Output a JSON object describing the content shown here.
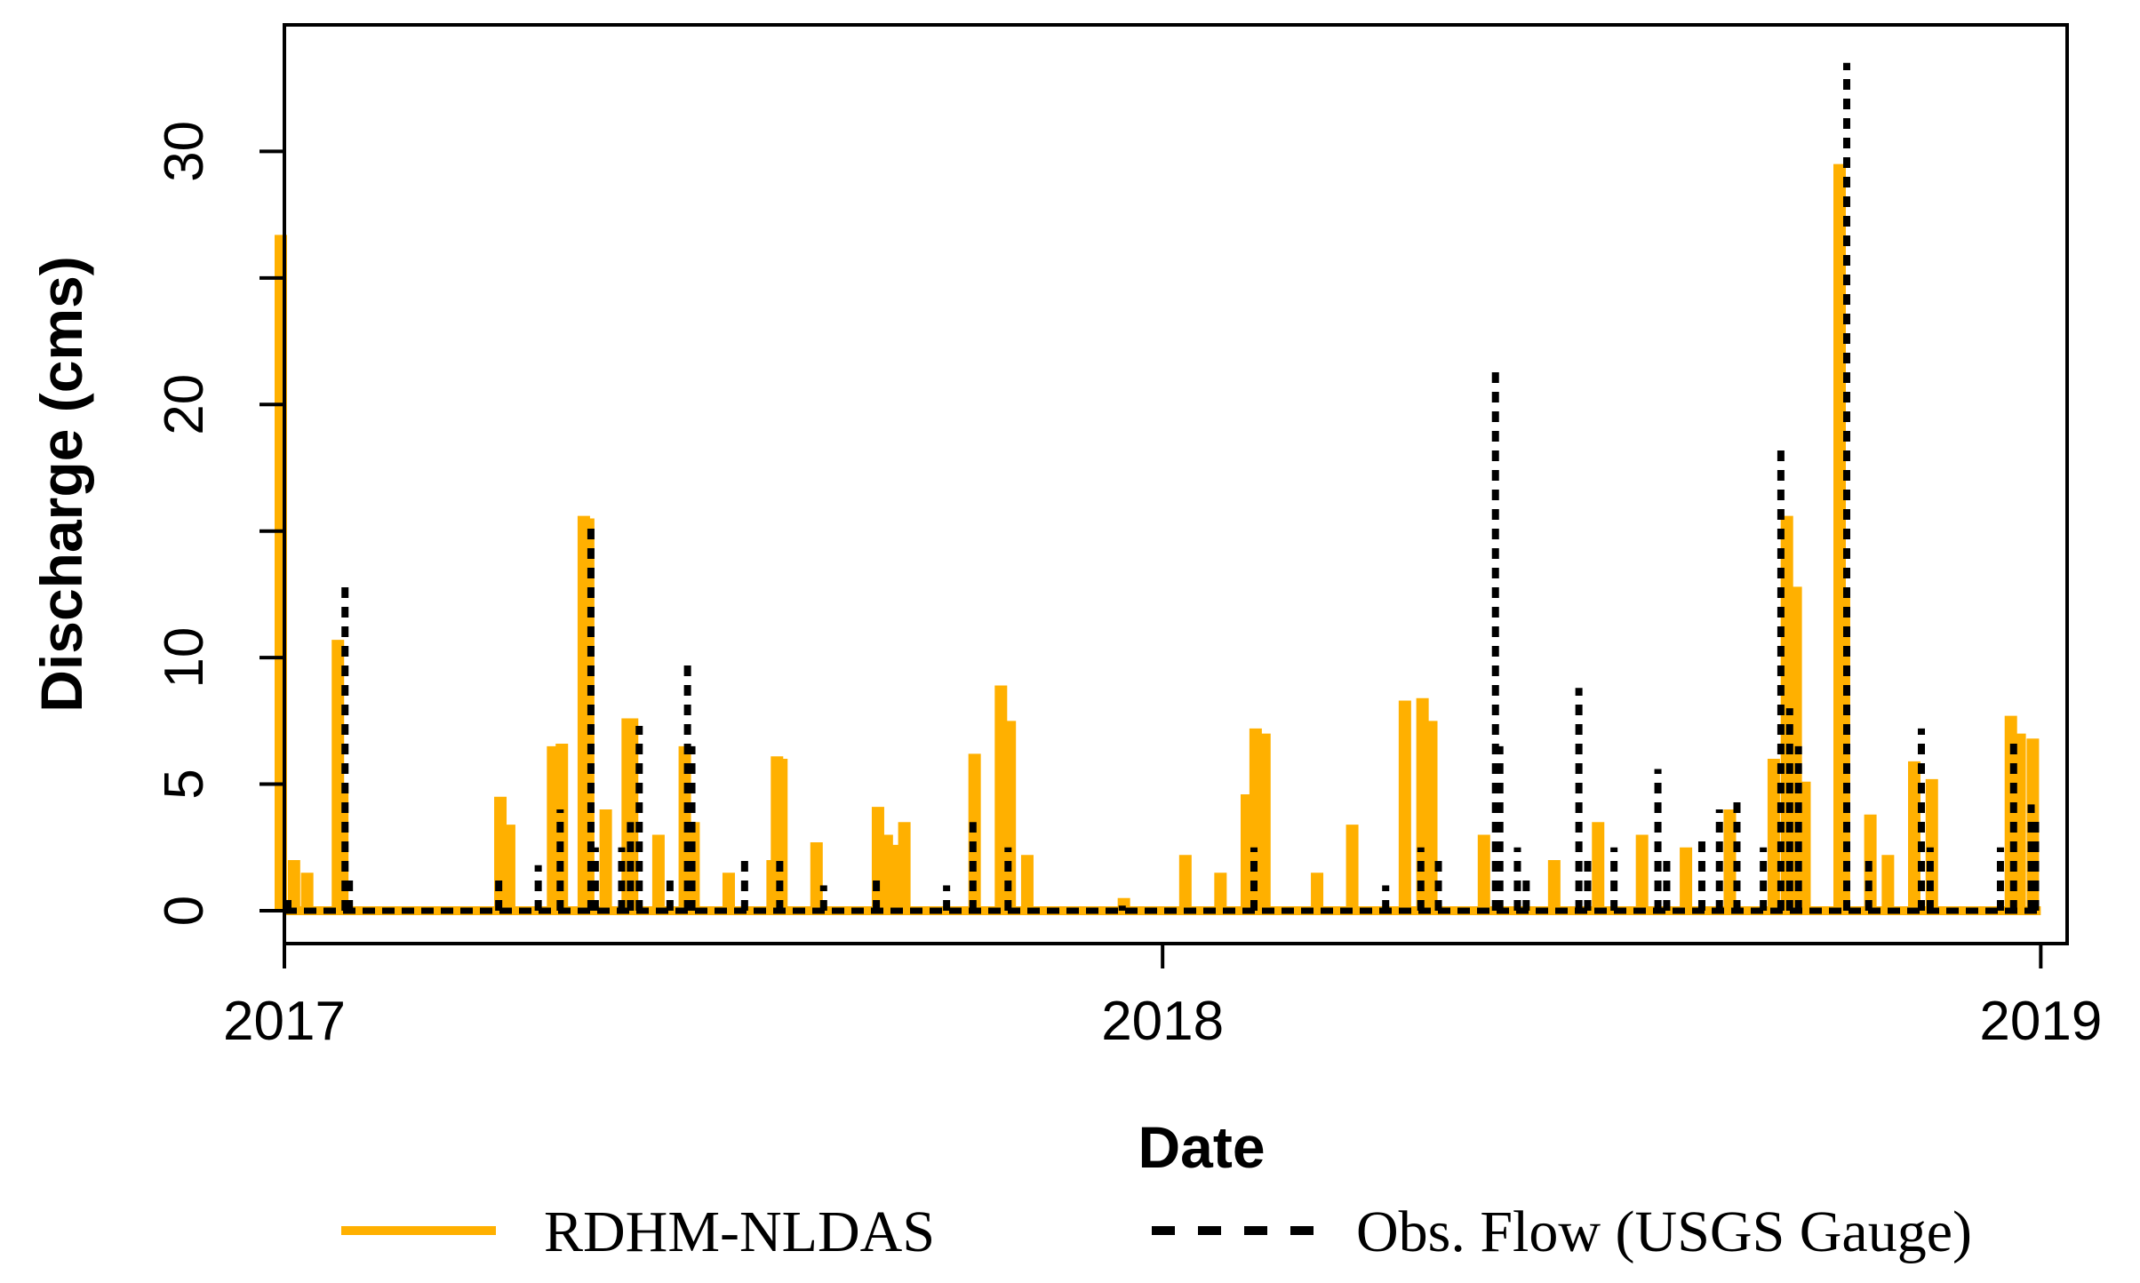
{
  "chart_data": {
    "type": "line",
    "title": "",
    "xlabel": "Date",
    "ylabel": "Discharge (cms)",
    "x_ticks": [
      "2017",
      "2018",
      "2019"
    ],
    "y_ticks": [
      0,
      5,
      10,
      20,
      30
    ],
    "xlim": [
      2017.0,
      2019.03
    ],
    "ylim": [
      -1.3,
      35.0
    ],
    "grid": false,
    "legend_position": "bottom",
    "colors": {
      "RDHM-NLDAS": "#FFB000",
      "Obs. Flow (USGS Gauge)": "#000000"
    },
    "series": [
      {
        "name": "RDHM-NLDAS",
        "style": "solid",
        "peaks": [
          [
            2017.0,
            26.7
          ],
          [
            2017.015,
            2.0
          ],
          [
            2017.03,
            1.5
          ],
          [
            2017.065,
            10.7
          ],
          [
            2017.07,
            5.0
          ],
          [
            2017.25,
            4.5
          ],
          [
            2017.26,
            3.4
          ],
          [
            2017.31,
            6.5
          ],
          [
            2017.32,
            6.6
          ],
          [
            2017.345,
            15.6
          ],
          [
            2017.35,
            15.5
          ],
          [
            2017.37,
            4.0
          ],
          [
            2017.395,
            7.6
          ],
          [
            2017.4,
            7.6
          ],
          [
            2017.43,
            3.0
          ],
          [
            2017.46,
            6.5
          ],
          [
            2017.47,
            3.5
          ],
          [
            2017.51,
            1.5
          ],
          [
            2017.56,
            2.0
          ],
          [
            2017.565,
            6.1
          ],
          [
            2017.57,
            6.0
          ],
          [
            2017.61,
            2.7
          ],
          [
            2017.68,
            4.1
          ],
          [
            2017.69,
            3.0
          ],
          [
            2017.7,
            2.6
          ],
          [
            2017.71,
            3.5
          ],
          [
            2017.79,
            6.2
          ],
          [
            2017.82,
            8.9
          ],
          [
            2017.83,
            7.5
          ],
          [
            2017.85,
            2.2
          ],
          [
            2017.96,
            0.5
          ],
          [
            2018.03,
            2.2
          ],
          [
            2018.07,
            1.5
          ],
          [
            2018.1,
            4.6
          ],
          [
            2018.11,
            7.2
          ],
          [
            2018.12,
            7.0
          ],
          [
            2018.18,
            1.5
          ],
          [
            2018.22,
            3.4
          ],
          [
            2018.28,
            8.3
          ],
          [
            2018.3,
            8.4
          ],
          [
            2018.31,
            7.5
          ],
          [
            2018.37,
            3.0
          ],
          [
            2018.45,
            2.0
          ],
          [
            2018.5,
            3.5
          ],
          [
            2018.55,
            3.0
          ],
          [
            2018.6,
            2.5
          ],
          [
            2018.65,
            4.0
          ],
          [
            2018.7,
            6.0
          ],
          [
            2018.715,
            15.6
          ],
          [
            2018.725,
            12.8
          ],
          [
            2018.735,
            5.1
          ],
          [
            2018.775,
            29.5
          ],
          [
            2018.78,
            12.6
          ],
          [
            2018.81,
            3.8
          ],
          [
            2018.83,
            2.2
          ],
          [
            2018.86,
            5.9
          ],
          [
            2018.88,
            5.2
          ],
          [
            2018.97,
            7.7
          ],
          [
            2018.98,
            7.0
          ],
          [
            2018.995,
            6.8
          ]
        ]
      },
      {
        "name": "Obs. Flow (USGS Gauge)",
        "style": "dashed",
        "peaks": [
          [
            2017.0,
            0.5
          ],
          [
            2017.065,
            12.8
          ],
          [
            2017.07,
            1.5
          ],
          [
            2017.24,
            1.5
          ],
          [
            2017.285,
            1.8
          ],
          [
            2017.31,
            4.0
          ],
          [
            2017.345,
            15.2
          ],
          [
            2017.35,
            2.5
          ],
          [
            2017.38,
            2.5
          ],
          [
            2017.39,
            3.5
          ],
          [
            2017.4,
            7.3
          ],
          [
            2017.435,
            1.3
          ],
          [
            2017.455,
            9.8
          ],
          [
            2017.46,
            6.5
          ],
          [
            2017.52,
            2.0
          ],
          [
            2017.56,
            2.0
          ],
          [
            2017.61,
            1.0
          ],
          [
            2017.67,
            1.5
          ],
          [
            2017.75,
            1.0
          ],
          [
            2017.78,
            3.5
          ],
          [
            2017.82,
            2.5
          ],
          [
            2017.95,
            0.2
          ],
          [
            2018.1,
            2.5
          ],
          [
            2018.25,
            1.0
          ],
          [
            2018.29,
            2.5
          ],
          [
            2018.31,
            2.0
          ],
          [
            2018.375,
            21.6
          ],
          [
            2018.38,
            6.5
          ],
          [
            2018.4,
            2.5
          ],
          [
            2018.41,
            1.5
          ],
          [
            2018.47,
            8.8
          ],
          [
            2018.48,
            2.0
          ],
          [
            2018.51,
            2.5
          ],
          [
            2018.56,
            5.6
          ],
          [
            2018.57,
            2.0
          ],
          [
            2018.61,
            3.0
          ],
          [
            2018.63,
            4.0
          ],
          [
            2018.65,
            4.3
          ],
          [
            2018.68,
            2.5
          ],
          [
            2018.7,
            18.5
          ],
          [
            2018.71,
            8.0
          ],
          [
            2018.72,
            6.5
          ],
          [
            2018.775,
            33.5
          ],
          [
            2018.8,
            2.0
          ],
          [
            2018.86,
            7.2
          ],
          [
            2018.87,
            2.5
          ],
          [
            2018.95,
            2.5
          ],
          [
            2018.965,
            6.9
          ],
          [
            2018.985,
            4.2
          ],
          [
            2018.99,
            3.8
          ]
        ]
      }
    ]
  },
  "legend": {
    "items": [
      {
        "label": "RDHM-NLDAS"
      },
      {
        "label": "Obs. Flow (USGS Gauge)"
      }
    ]
  }
}
